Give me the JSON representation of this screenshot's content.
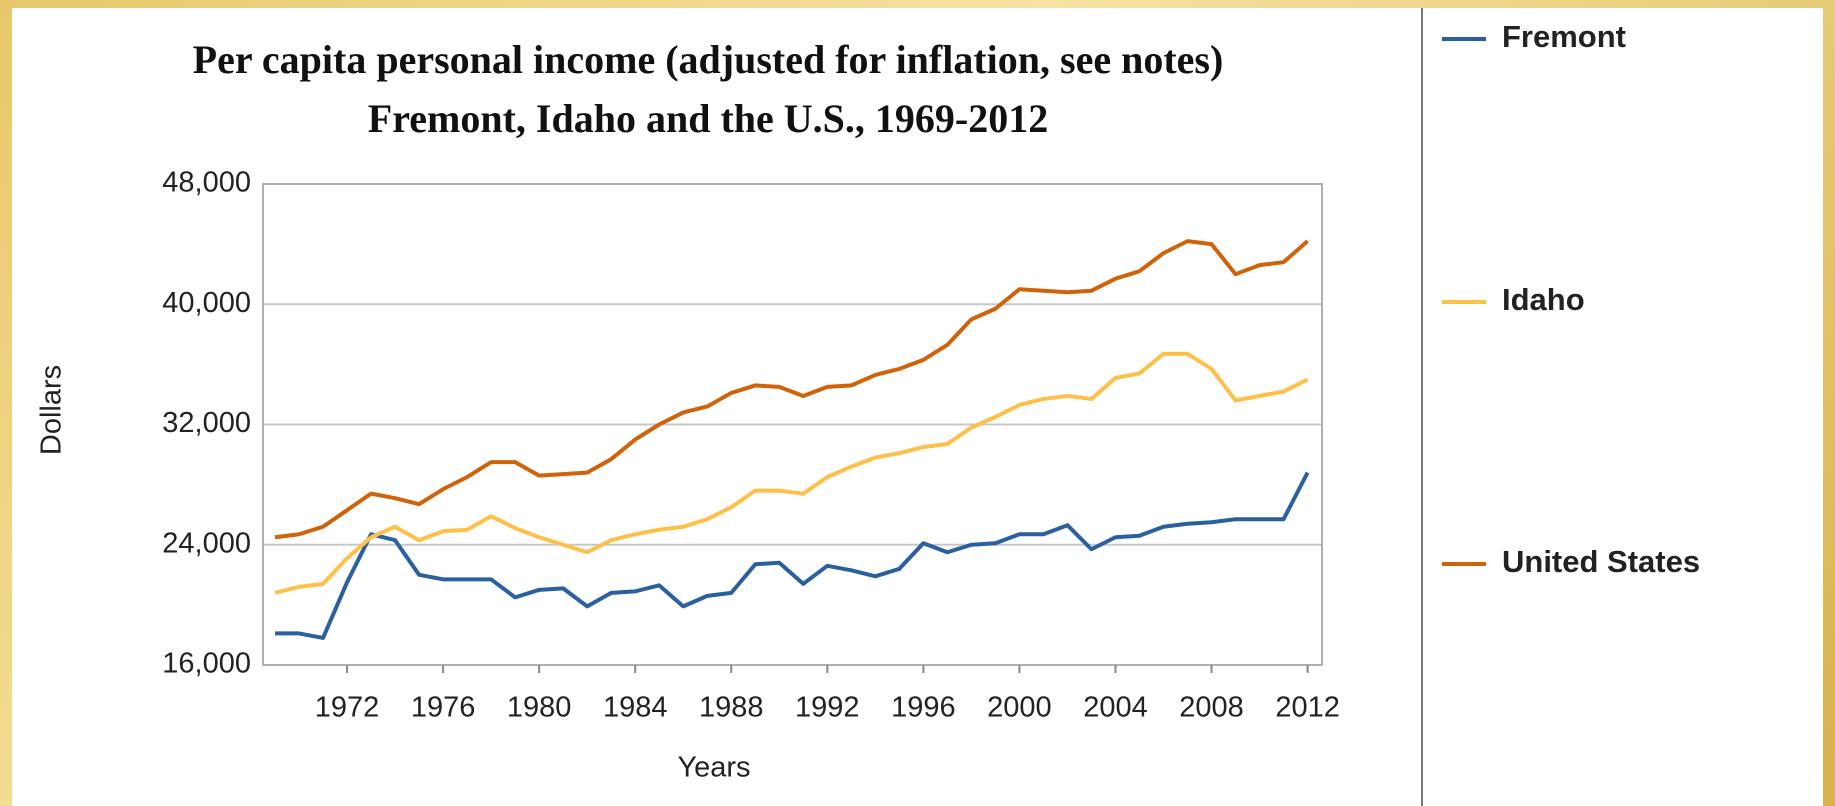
{
  "chart_data": {
    "type": "line",
    "title": "Per capita personal income (adjusted for inflation, see notes)",
    "subtitle": "Fremont, Idaho and the U.S., 1969-2012",
    "x_label": "Years",
    "y_label": "Dollars",
    "x": [
      1969,
      1970,
      1971,
      1972,
      1973,
      1974,
      1975,
      1976,
      1977,
      1978,
      1979,
      1980,
      1981,
      1982,
      1983,
      1984,
      1985,
      1986,
      1987,
      1988,
      1989,
      1990,
      1991,
      1992,
      1993,
      1994,
      1995,
      1996,
      1997,
      1998,
      1999,
      2000,
      2001,
      2002,
      2003,
      2004,
      2005,
      2006,
      2007,
      2008,
      2009,
      2010,
      2011,
      2012
    ],
    "series": [
      {
        "name": "Fremont",
        "color": "#2a5fa0",
        "values": [
          18100,
          18100,
          17800,
          21500,
          24700,
          24300,
          22000,
          21700,
          21700,
          21700,
          20500,
          21000,
          21100,
          19900,
          20800,
          20900,
          21300,
          19900,
          20600,
          20800,
          22700,
          22800,
          21400,
          22600,
          22300,
          21900,
          22400,
          24100,
          23500,
          24000,
          24100,
          24700,
          24700,
          25300,
          23700,
          24500,
          24600,
          25200,
          25400,
          25500,
          25700,
          25700,
          25700,
          28800
        ]
      },
      {
        "name": "Idaho",
        "color": "#ffc04a",
        "values": [
          20800,
          21200,
          21400,
          23100,
          24500,
          25200,
          24300,
          24900,
          25000,
          25900,
          25100,
          24500,
          24000,
          23500,
          24300,
          24700,
          25000,
          25200,
          25700,
          26500,
          27600,
          27600,
          27400,
          28500,
          29200,
          29800,
          30100,
          30500,
          30700,
          31800,
          32500,
          33300,
          33700,
          33900,
          33700,
          35100,
          35400,
          36700,
          36700,
          35700,
          33600,
          33900,
          34200,
          35000
        ]
      },
      {
        "name": "United States",
        "color": "#d0620a",
        "values": [
          24500,
          24700,
          25200,
          26300,
          27400,
          27100,
          26700,
          27700,
          28500,
          29500,
          29500,
          28600,
          28700,
          28800,
          29700,
          31000,
          32000,
          32800,
          33200,
          34100,
          34600,
          34500,
          33900,
          34500,
          34600,
          35300,
          35700,
          36300,
          37300,
          39000,
          39700,
          41000,
          40900,
          40800,
          40900,
          41700,
          42200,
          43400,
          44200,
          44000,
          42000,
          42600,
          42800,
          44200
        ]
      }
    ],
    "xlim": [
      1968.5,
      2012.6
    ],
    "xticks": [
      1972,
      1976,
      1980,
      1984,
      1988,
      1992,
      1996,
      2000,
      2004,
      2008,
      2012
    ],
    "ylim": [
      16000,
      48000
    ],
    "yticks": [
      {
        "value": 16000,
        "label": "16,000"
      },
      {
        "value": 24000,
        "label": "24,000"
      },
      {
        "value": 32000,
        "label": "32,000"
      },
      {
        "value": 40000,
        "label": "40,000"
      },
      {
        "value": 48000,
        "label": "48,000"
      }
    ],
    "grid": true,
    "legend": "right"
  }
}
